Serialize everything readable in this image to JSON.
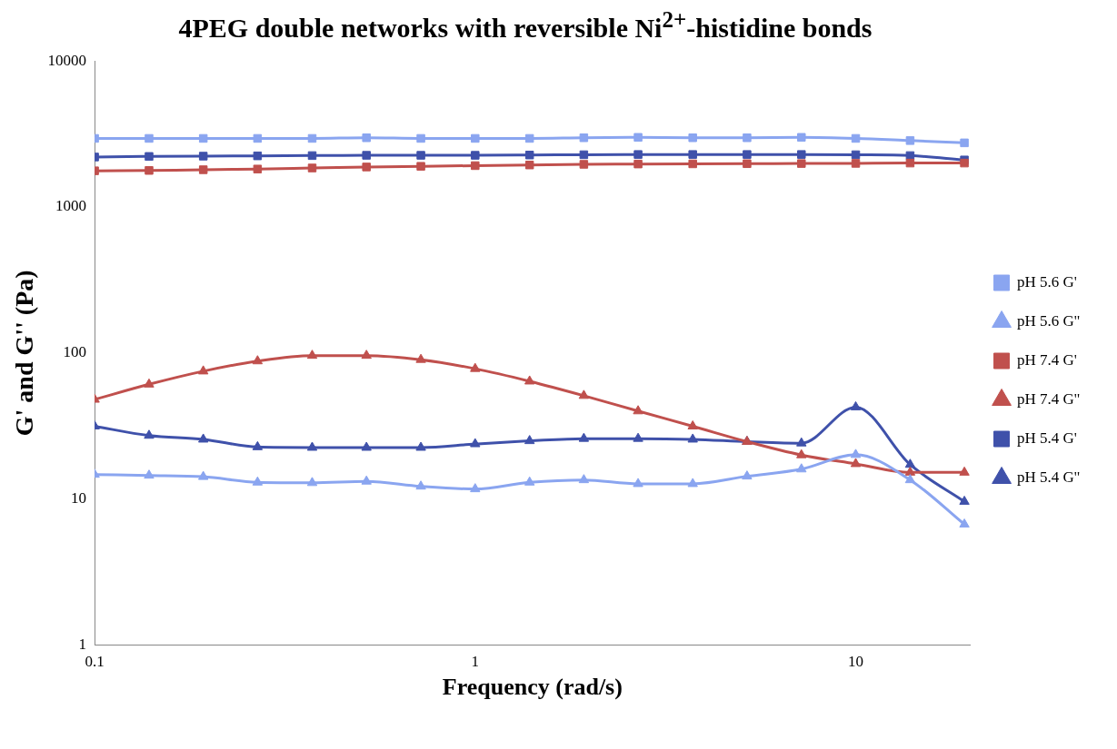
{
  "chart_data": {
    "type": "line",
    "title": "4PEG double networks with reversible Ni$^{2+}$-histidine bonds",
    "xlabel": "Frequency (rad/s)",
    "ylabel": "G' and G'' (Pa)",
    "x": [
      0.1,
      0.139,
      0.193,
      0.268,
      0.373,
      0.518,
      0.72,
      1,
      1.39,
      1.93,
      2.68,
      3.73,
      5.18,
      7.2,
      10,
      13.9,
      19.3
    ],
    "series": [
      {
        "name": "pH 5.6 G'",
        "color": "#8aa5f0",
        "marker": "square",
        "values": [
          2950,
          2950,
          2950,
          2950,
          2950,
          2980,
          2950,
          2950,
          2950,
          2980,
          3000,
          2980,
          2980,
          3000,
          2950,
          2850,
          2750
        ]
      },
      {
        "name": "pH 5.6 G''",
        "color": "#8aa5f0",
        "marker": "triangle",
        "values": [
          14.7,
          14.5,
          14.2,
          13,
          12.9,
          13.2,
          12.2,
          11.7,
          13,
          13.5,
          12.7,
          12.7,
          14.3,
          16,
          20.1,
          13.5,
          6.7
        ]
      },
      {
        "name": "pH 7.4 G'",
        "color": "#c0504d",
        "marker": "square",
        "values": [
          1770,
          1780,
          1800,
          1820,
          1850,
          1880,
          1900,
          1920,
          1940,
          1960,
          1970,
          1975,
          1980,
          1985,
          1990,
          2000,
          2000
        ]
      },
      {
        "name": "pH 7.4 G''",
        "color": "#c0504d",
        "marker": "triangle",
        "values": [
          48,
          61,
          75,
          88,
          96,
          96,
          90,
          78,
          64,
          51,
          40,
          31.5,
          24.7,
          20,
          17.4,
          15.2,
          15.2
        ]
      },
      {
        "name": "pH 5.4 G'",
        "color": "#3f51aa",
        "marker": "square",
        "values": [
          2200,
          2220,
          2230,
          2240,
          2250,
          2260,
          2260,
          2260,
          2270,
          2280,
          2290,
          2290,
          2290,
          2290,
          2280,
          2250,
          2100
        ]
      },
      {
        "name": "pH 5.4 G''",
        "color": "#3f51aa",
        "marker": "triangle",
        "values": [
          31.5,
          27.2,
          25.6,
          22.7,
          22.5,
          22.5,
          22.5,
          23.8,
          25,
          25.9,
          25.9,
          25.6,
          24.7,
          24.1,
          42.6,
          17.2,
          9.6
        ]
      }
    ],
    "log": "xy",
    "xlim": [
      0.1,
      20
    ],
    "xticks": [
      0.1,
      1,
      10
    ],
    "ylim": [
      1,
      10000
    ],
    "yticks": [
      1,
      10,
      100,
      1000,
      10000
    ],
    "grid": false,
    "legend": "right",
    "line_style": "solid"
  }
}
